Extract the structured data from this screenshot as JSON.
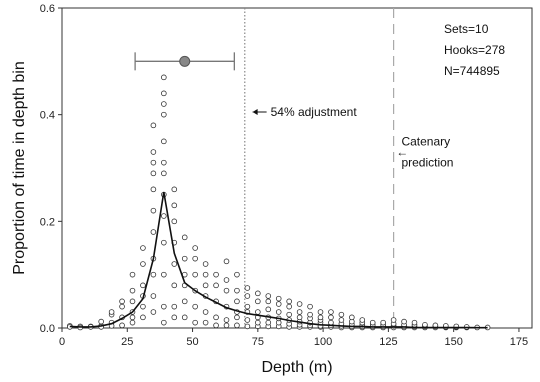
{
  "chart_data": {
    "type": "scatter",
    "title": "",
    "xlabel": "Depth (m)",
    "ylabel": "Proportion of time in depth bin",
    "xlim": [
      0,
      180
    ],
    "ylim": [
      0,
      0.6
    ],
    "xticks": [
      0,
      25,
      50,
      75,
      100,
      125,
      150,
      175
    ],
    "yticks": [
      0.0,
      0.2,
      0.4,
      0.6
    ],
    "ytick_labels": [
      "0.0",
      "0.2",
      "0.4",
      "0.6"
    ],
    "grid": false,
    "series": [
      {
        "type": "scatter",
        "marker": "open-circle",
        "points": [
          [
            3,
            0.004
          ],
          [
            3,
            0.002
          ],
          [
            7,
            0.003
          ],
          [
            7,
            0.001
          ],
          [
            11,
            0.003
          ],
          [
            11,
            0.002
          ],
          [
            15,
            0.004
          ],
          [
            15,
            0.002
          ],
          [
            15,
            0.012
          ],
          [
            19,
            0.01
          ],
          [
            19,
            0.004
          ],
          [
            19,
            0.025
          ],
          [
            19,
            0.03
          ],
          [
            23,
            0.005
          ],
          [
            23,
            0.02
          ],
          [
            23,
            0.04
          ],
          [
            23,
            0.05
          ],
          [
            27,
            0.01
          ],
          [
            27,
            0.02
          ],
          [
            27,
            0.03
          ],
          [
            27,
            0.05
          ],
          [
            27,
            0.07
          ],
          [
            27,
            0.1
          ],
          [
            31,
            0.02
          ],
          [
            31,
            0.04
          ],
          [
            31,
            0.06
          ],
          [
            31,
            0.08
          ],
          [
            31,
            0.12
          ],
          [
            31,
            0.15
          ],
          [
            35,
            0.03
          ],
          [
            35,
            0.06
          ],
          [
            35,
            0.1
          ],
          [
            35,
            0.13
          ],
          [
            35,
            0.18
          ],
          [
            35,
            0.22
          ],
          [
            35,
            0.26
          ],
          [
            35,
            0.29
          ],
          [
            35,
            0.31
          ],
          [
            35,
            0.33
          ],
          [
            35,
            0.38
          ],
          [
            39,
            0.01
          ],
          [
            39,
            0.04
          ],
          [
            39,
            0.1
          ],
          [
            39,
            0.16
          ],
          [
            39,
            0.21
          ],
          [
            39,
            0.25
          ],
          [
            39,
            0.29
          ],
          [
            39,
            0.31
          ],
          [
            39,
            0.35
          ],
          [
            39,
            0.4
          ],
          [
            39,
            0.42
          ],
          [
            39,
            0.44
          ],
          [
            39,
            0.47
          ],
          [
            43,
            0.02
          ],
          [
            43,
            0.04
          ],
          [
            43,
            0.08
          ],
          [
            43,
            0.12
          ],
          [
            43,
            0.16
          ],
          [
            43,
            0.2
          ],
          [
            43,
            0.23
          ],
          [
            43,
            0.26
          ],
          [
            47,
            0.02
          ],
          [
            47,
            0.05
          ],
          [
            47,
            0.08
          ],
          [
            47,
            0.1
          ],
          [
            47,
            0.13
          ],
          [
            47,
            0.17
          ],
          [
            51,
            0.01
          ],
          [
            51,
            0.04
          ],
          [
            51,
            0.07
          ],
          [
            51,
            0.1
          ],
          [
            51,
            0.13
          ],
          [
            51,
            0.15
          ],
          [
            55,
            0.01
          ],
          [
            55,
            0.03
          ],
          [
            55,
            0.06
          ],
          [
            55,
            0.08
          ],
          [
            55,
            0.1
          ],
          [
            55,
            0.12
          ],
          [
            59,
            0.005
          ],
          [
            59,
            0.02
          ],
          [
            59,
            0.05
          ],
          [
            59,
            0.08
          ],
          [
            59,
            0.1
          ],
          [
            63,
            0.005
          ],
          [
            63,
            0.015
          ],
          [
            63,
            0.04
          ],
          [
            63,
            0.07
          ],
          [
            63,
            0.09
          ],
          [
            63,
            0.125
          ],
          [
            67,
            0.005
          ],
          [
            67,
            0.02
          ],
          [
            67,
            0.03
          ],
          [
            67,
            0.05
          ],
          [
            67,
            0.07
          ],
          [
            67,
            0.1
          ],
          [
            71,
            0.003
          ],
          [
            71,
            0.015
          ],
          [
            71,
            0.03
          ],
          [
            71,
            0.04
          ],
          [
            71,
            0.06
          ],
          [
            71,
            0.075
          ],
          [
            75,
            0.003
          ],
          [
            75,
            0.01
          ],
          [
            75,
            0.02
          ],
          [
            75,
            0.03
          ],
          [
            75,
            0.05
          ],
          [
            75,
            0.065
          ],
          [
            79,
            0.003
          ],
          [
            79,
            0.01
          ],
          [
            79,
            0.02
          ],
          [
            79,
            0.035
          ],
          [
            79,
            0.05
          ],
          [
            79,
            0.06
          ],
          [
            83,
            0.003
          ],
          [
            83,
            0.01
          ],
          [
            83,
            0.018
          ],
          [
            83,
            0.03
          ],
          [
            83,
            0.045
          ],
          [
            83,
            0.055
          ],
          [
            87,
            0.002
          ],
          [
            87,
            0.008
          ],
          [
            87,
            0.015
          ],
          [
            87,
            0.025
          ],
          [
            87,
            0.04
          ],
          [
            87,
            0.05
          ],
          [
            91,
            0.002
          ],
          [
            91,
            0.006
          ],
          [
            91,
            0.012
          ],
          [
            91,
            0.02
          ],
          [
            91,
            0.03
          ],
          [
            91,
            0.045
          ],
          [
            95,
            0.002
          ],
          [
            95,
            0.005
          ],
          [
            95,
            0.01
          ],
          [
            95,
            0.018
          ],
          [
            95,
            0.025
          ],
          [
            95,
            0.04
          ],
          [
            99,
            0.002
          ],
          [
            99,
            0.004
          ],
          [
            99,
            0.01
          ],
          [
            99,
            0.015
          ],
          [
            99,
            0.02
          ],
          [
            99,
            0.03
          ],
          [
            103,
            0.002
          ],
          [
            103,
            0.005
          ],
          [
            103,
            0.01
          ],
          [
            103,
            0.02
          ],
          [
            103,
            0.03
          ],
          [
            107,
            0.001
          ],
          [
            107,
            0.004
          ],
          [
            107,
            0.008
          ],
          [
            107,
            0.015
          ],
          [
            107,
            0.025
          ],
          [
            111,
            0.001
          ],
          [
            111,
            0.003
          ],
          [
            111,
            0.007
          ],
          [
            111,
            0.012
          ],
          [
            111,
            0.02
          ],
          [
            115,
            0.001
          ],
          [
            115,
            0.003
          ],
          [
            115,
            0.006
          ],
          [
            115,
            0.01
          ],
          [
            115,
            0.015
          ],
          [
            119,
            0.001
          ],
          [
            119,
            0.003
          ],
          [
            119,
            0.006
          ],
          [
            119,
            0.01
          ],
          [
            123,
            0.001
          ],
          [
            123,
            0.003
          ],
          [
            123,
            0.006
          ],
          [
            123,
            0.01
          ],
          [
            127,
            0.001
          ],
          [
            127,
            0.004
          ],
          [
            127,
            0.008
          ],
          [
            127,
            0.015
          ],
          [
            131,
            0.001
          ],
          [
            131,
            0.003
          ],
          [
            131,
            0.006
          ],
          [
            131,
            0.012
          ],
          [
            135,
            0.001
          ],
          [
            135,
            0.003
          ],
          [
            135,
            0.006
          ],
          [
            135,
            0.01
          ],
          [
            139,
            0.001
          ],
          [
            139,
            0.003
          ],
          [
            139,
            0.006
          ],
          [
            143,
            0.001
          ],
          [
            143,
            0.003
          ],
          [
            143,
            0.005
          ],
          [
            147,
            0.001
          ],
          [
            147,
            0.002
          ],
          [
            147,
            0.004
          ],
          [
            151,
            0.001
          ],
          [
            151,
            0.002
          ],
          [
            151,
            0.003
          ],
          [
            155,
            0.001
          ],
          [
            155,
            0.002
          ],
          [
            159,
            0.001
          ],
          [
            163,
            0.001
          ]
        ]
      },
      {
        "type": "line",
        "points": [
          [
            3,
            0.003
          ],
          [
            7,
            0.002
          ],
          [
            11,
            0.002
          ],
          [
            15,
            0.004
          ],
          [
            19,
            0.008
          ],
          [
            23,
            0.018
          ],
          [
            27,
            0.03
          ],
          [
            31,
            0.055
          ],
          [
            35,
            0.13
          ],
          [
            39,
            0.255
          ],
          [
            43,
            0.14
          ],
          [
            47,
            0.085
          ],
          [
            51,
            0.07
          ],
          [
            55,
            0.058
          ],
          [
            59,
            0.048
          ],
          [
            63,
            0.038
          ],
          [
            67,
            0.032
          ],
          [
            71,
            0.027
          ],
          [
            75,
            0.024
          ],
          [
            79,
            0.021
          ],
          [
            83,
            0.018
          ],
          [
            87,
            0.014
          ],
          [
            91,
            0.011
          ],
          [
            95,
            0.008
          ],
          [
            99,
            0.006
          ],
          [
            103,
            0.005
          ],
          [
            107,
            0.004
          ],
          [
            111,
            0.003
          ],
          [
            115,
            0.003
          ],
          [
            119,
            0.002
          ],
          [
            123,
            0.002
          ],
          [
            127,
            0.002
          ],
          [
            131,
            0.002
          ],
          [
            135,
            0.001
          ],
          [
            139,
            0.001
          ],
          [
            143,
            0.001
          ],
          [
            147,
            0.001
          ],
          [
            151,
            0.001
          ],
          [
            155,
            0.001
          ],
          [
            159,
            0.0005
          ],
          [
            163,
            0.0005
          ]
        ]
      }
    ],
    "errorbar": {
      "center": [
        47,
        0.5
      ],
      "xmin": 28,
      "xmax": 66
    },
    "vlines": [
      {
        "x": 70,
        "style": "dotted"
      },
      {
        "x": 127,
        "style": "dashed"
      }
    ],
    "annotations": [
      {
        "text": "54% adjustment",
        "x": 73,
        "y": 0.405,
        "arrow": "left"
      },
      {
        "text": "Catenary",
        "x": 130,
        "y": 0.35,
        "arrow": "none"
      },
      {
        "text": "prediction",
        "x": 130,
        "y": 0.31,
        "arrow": "none"
      },
      {
        "text": "←",
        "x": 128,
        "y": 0.33,
        "arrow": "only"
      }
    ],
    "stats": [
      "Sets=10",
      "Hooks=278",
      "N=744895"
    ]
  }
}
